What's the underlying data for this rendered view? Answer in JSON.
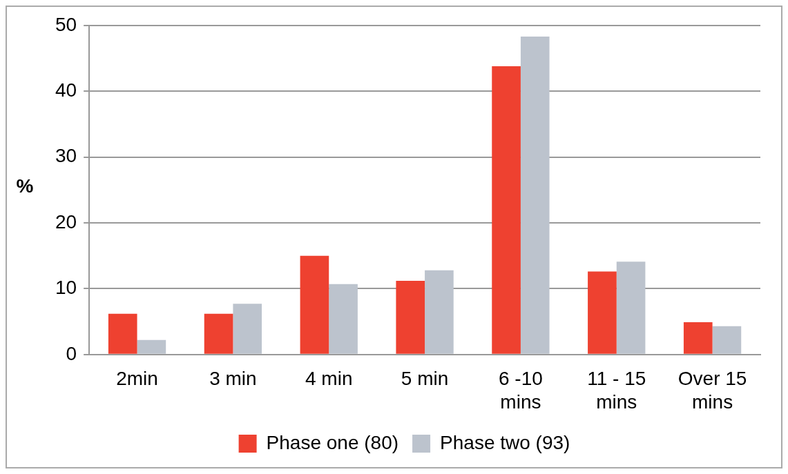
{
  "chart_data": {
    "type": "bar",
    "ylabel": "%",
    "categories": [
      "2min",
      "3 min",
      "4 min",
      "5 min",
      "6 -10\nmins",
      "11 - 15\nmins",
      "Over 15\nmins"
    ],
    "series": [
      {
        "name": "Phase one (80)",
        "color": "#ee4130",
        "values": [
          6.2,
          6.2,
          15.0,
          11.2,
          43.8,
          12.6,
          4.9
        ]
      },
      {
        "name": "Phase two (93)",
        "color": "#bcc3cd",
        "values": [
          2.2,
          7.7,
          10.7,
          12.8,
          48.3,
          14.1,
          4.3
        ]
      }
    ],
    "ylim": [
      0,
      50
    ],
    "yticks": [
      0,
      10,
      20,
      30,
      40,
      50
    ],
    "grid": "y",
    "legend": "bottom"
  }
}
